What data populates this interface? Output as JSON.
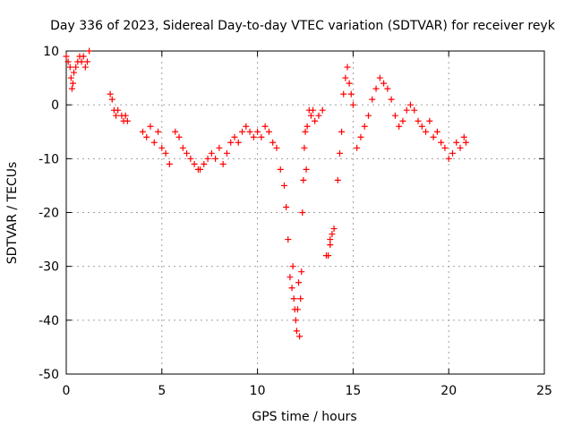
{
  "chart_data": {
    "type": "scatter",
    "title": "Day 336 of 2023, Sidereal Day-to-day VTEC variation (SDTVAR) for receiver reyk",
    "xlabel": "GPS time / hours",
    "ylabel": "SDTVAR / TECUs",
    "xlim": [
      0,
      25
    ],
    "ylim": [
      -50,
      10
    ],
    "x_ticks": [
      0,
      5,
      10,
      15,
      20,
      25
    ],
    "y_ticks": [
      -50,
      -40,
      -30,
      -20,
      -10,
      0,
      10
    ],
    "x_tick_labels": [
      "0",
      "5",
      "10",
      "15",
      "20",
      "25"
    ],
    "y_tick_labels": [
      "-50",
      "-40",
      "-30",
      "-20",
      "-10",
      "0",
      "10"
    ],
    "grid": true,
    "marker": "+",
    "marker_color": "#ff0000",
    "series": [
      {
        "name": "reyk",
        "x": [
          0.0,
          0.1,
          0.2,
          0.25,
          0.3,
          0.35,
          0.4,
          0.5,
          0.6,
          0.7,
          0.8,
          0.9,
          1.0,
          1.1,
          1.2,
          2.3,
          2.4,
          2.5,
          2.6,
          2.7,
          2.9,
          3.0,
          3.1,
          3.2,
          4.0,
          4.2,
          4.4,
          4.6,
          4.8,
          5.0,
          5.2,
          5.4,
          5.7,
          5.9,
          6.1,
          6.3,
          6.5,
          6.7,
          6.9,
          7.0,
          7.2,
          7.4,
          7.6,
          7.8,
          8.0,
          8.2,
          8.4,
          8.6,
          8.8,
          9.0,
          9.2,
          9.4,
          9.6,
          9.8,
          10.0,
          10.2,
          10.4,
          10.6,
          10.8,
          11.0,
          11.2,
          11.4,
          11.5,
          11.6,
          11.7,
          11.8,
          11.85,
          11.9,
          11.95,
          12.0,
          12.05,
          12.1,
          12.15,
          12.2,
          12.25,
          12.3,
          12.35,
          12.4,
          12.45,
          12.5,
          12.55,
          12.6,
          12.7,
          12.8,
          12.9,
          13.0,
          13.2,
          13.4,
          13.6,
          13.8,
          13.7,
          13.8,
          13.9,
          14.0,
          14.2,
          14.3,
          14.4,
          14.5,
          14.6,
          14.7,
          14.8,
          14.9,
          15.0,
          15.2,
          15.4,
          15.6,
          15.8,
          16.0,
          16.2,
          16.4,
          16.6,
          16.8,
          17.0,
          17.2,
          17.4,
          17.6,
          17.8,
          18.0,
          18.2,
          18.4,
          18.6,
          18.8,
          19.0,
          19.2,
          19.4,
          19.6,
          19.8,
          20.0,
          20.2,
          20.4,
          20.6,
          20.8,
          20.9
        ],
        "y": [
          9,
          8,
          7,
          5,
          3,
          4,
          6,
          7,
          8,
          9,
          8,
          9,
          7,
          8,
          10,
          2,
          1,
          -1,
          -2,
          -1,
          -2,
          -3,
          -2,
          -3,
          -5,
          -6,
          -4,
          -7,
          -5,
          -8,
          -9,
          -11,
          -5,
          -6,
          -8,
          -9,
          -10,
          -11,
          -12,
          -12,
          -11,
          -10,
          -9,
          -10,
          -8,
          -11,
          -9,
          -7,
          -6,
          -7,
          -5,
          -4,
          -5,
          -6,
          -5,
          -6,
          -4,
          -5,
          -7,
          -8,
          -12,
          -15,
          -19,
          -25,
          -32,
          -34,
          -30,
          -36,
          -38,
          -40,
          -42,
          -38,
          -33,
          -43,
          -36,
          -31,
          -20,
          -14,
          -8,
          -5,
          -12,
          -4,
          -1,
          -2,
          -1,
          -3,
          -2,
          -1,
          -28,
          -26,
          -28,
          -25,
          -24,
          -23,
          -14,
          -9,
          -5,
          2,
          5,
          7,
          4,
          2,
          0,
          -8,
          -6,
          -4,
          -2,
          1,
          3,
          5,
          4,
          3,
          1,
          -2,
          -4,
          -3,
          -1,
          0,
          -1,
          -3,
          -4,
          -5,
          -3,
          -6,
          -5,
          -7,
          -8,
          -10,
          -9,
          -7,
          -8,
          -6,
          -7
        ]
      }
    ]
  }
}
